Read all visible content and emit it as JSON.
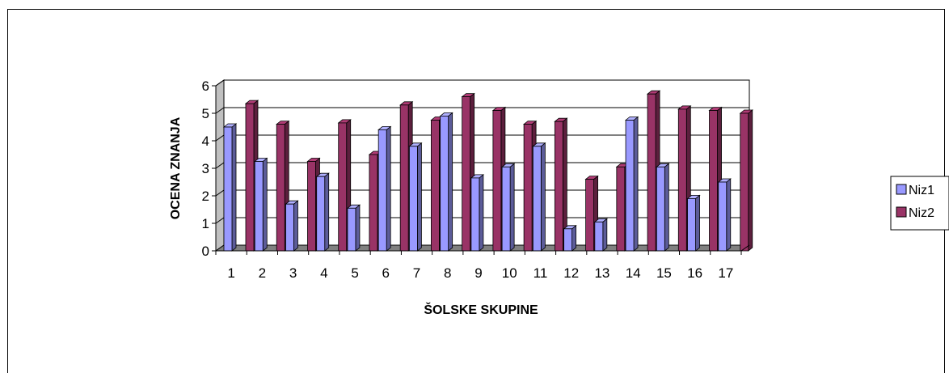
{
  "chart_data": {
    "type": "bar",
    "categories": [
      "1",
      "2",
      "3",
      "4",
      "5",
      "6",
      "7",
      "8",
      "9",
      "10",
      "11",
      "12",
      "13",
      "14",
      "15",
      "16",
      "17"
    ],
    "series": [
      {
        "name": "Niz1",
        "color": "#9999ff",
        "values": [
          4.5,
          3.25,
          1.7,
          2.7,
          1.55,
          4.4,
          3.8,
          4.9,
          2.65,
          3.05,
          3.8,
          0.8,
          1.05,
          4.75,
          3.05,
          1.9,
          2.5
        ]
      },
      {
        "name": "Niz2",
        "color": "#993366",
        "values": [
          5.35,
          4.6,
          3.25,
          4.65,
          3.5,
          5.3,
          4.75,
          5.6,
          5.1,
          4.6,
          4.7,
          2.6,
          3.05,
          5.7,
          5.15,
          5.1,
          5.0
        ]
      }
    ],
    "xlabel": "ŠOLSKE SKUPINE",
    "ylabel": "OCENA ZNANJA",
    "ylim": [
      0,
      6
    ],
    "yticks": [
      "0",
      "1",
      "2",
      "3",
      "4",
      "5",
      "6"
    ],
    "grid": true,
    "legend": "right",
    "style": "3d-clustered-column"
  }
}
